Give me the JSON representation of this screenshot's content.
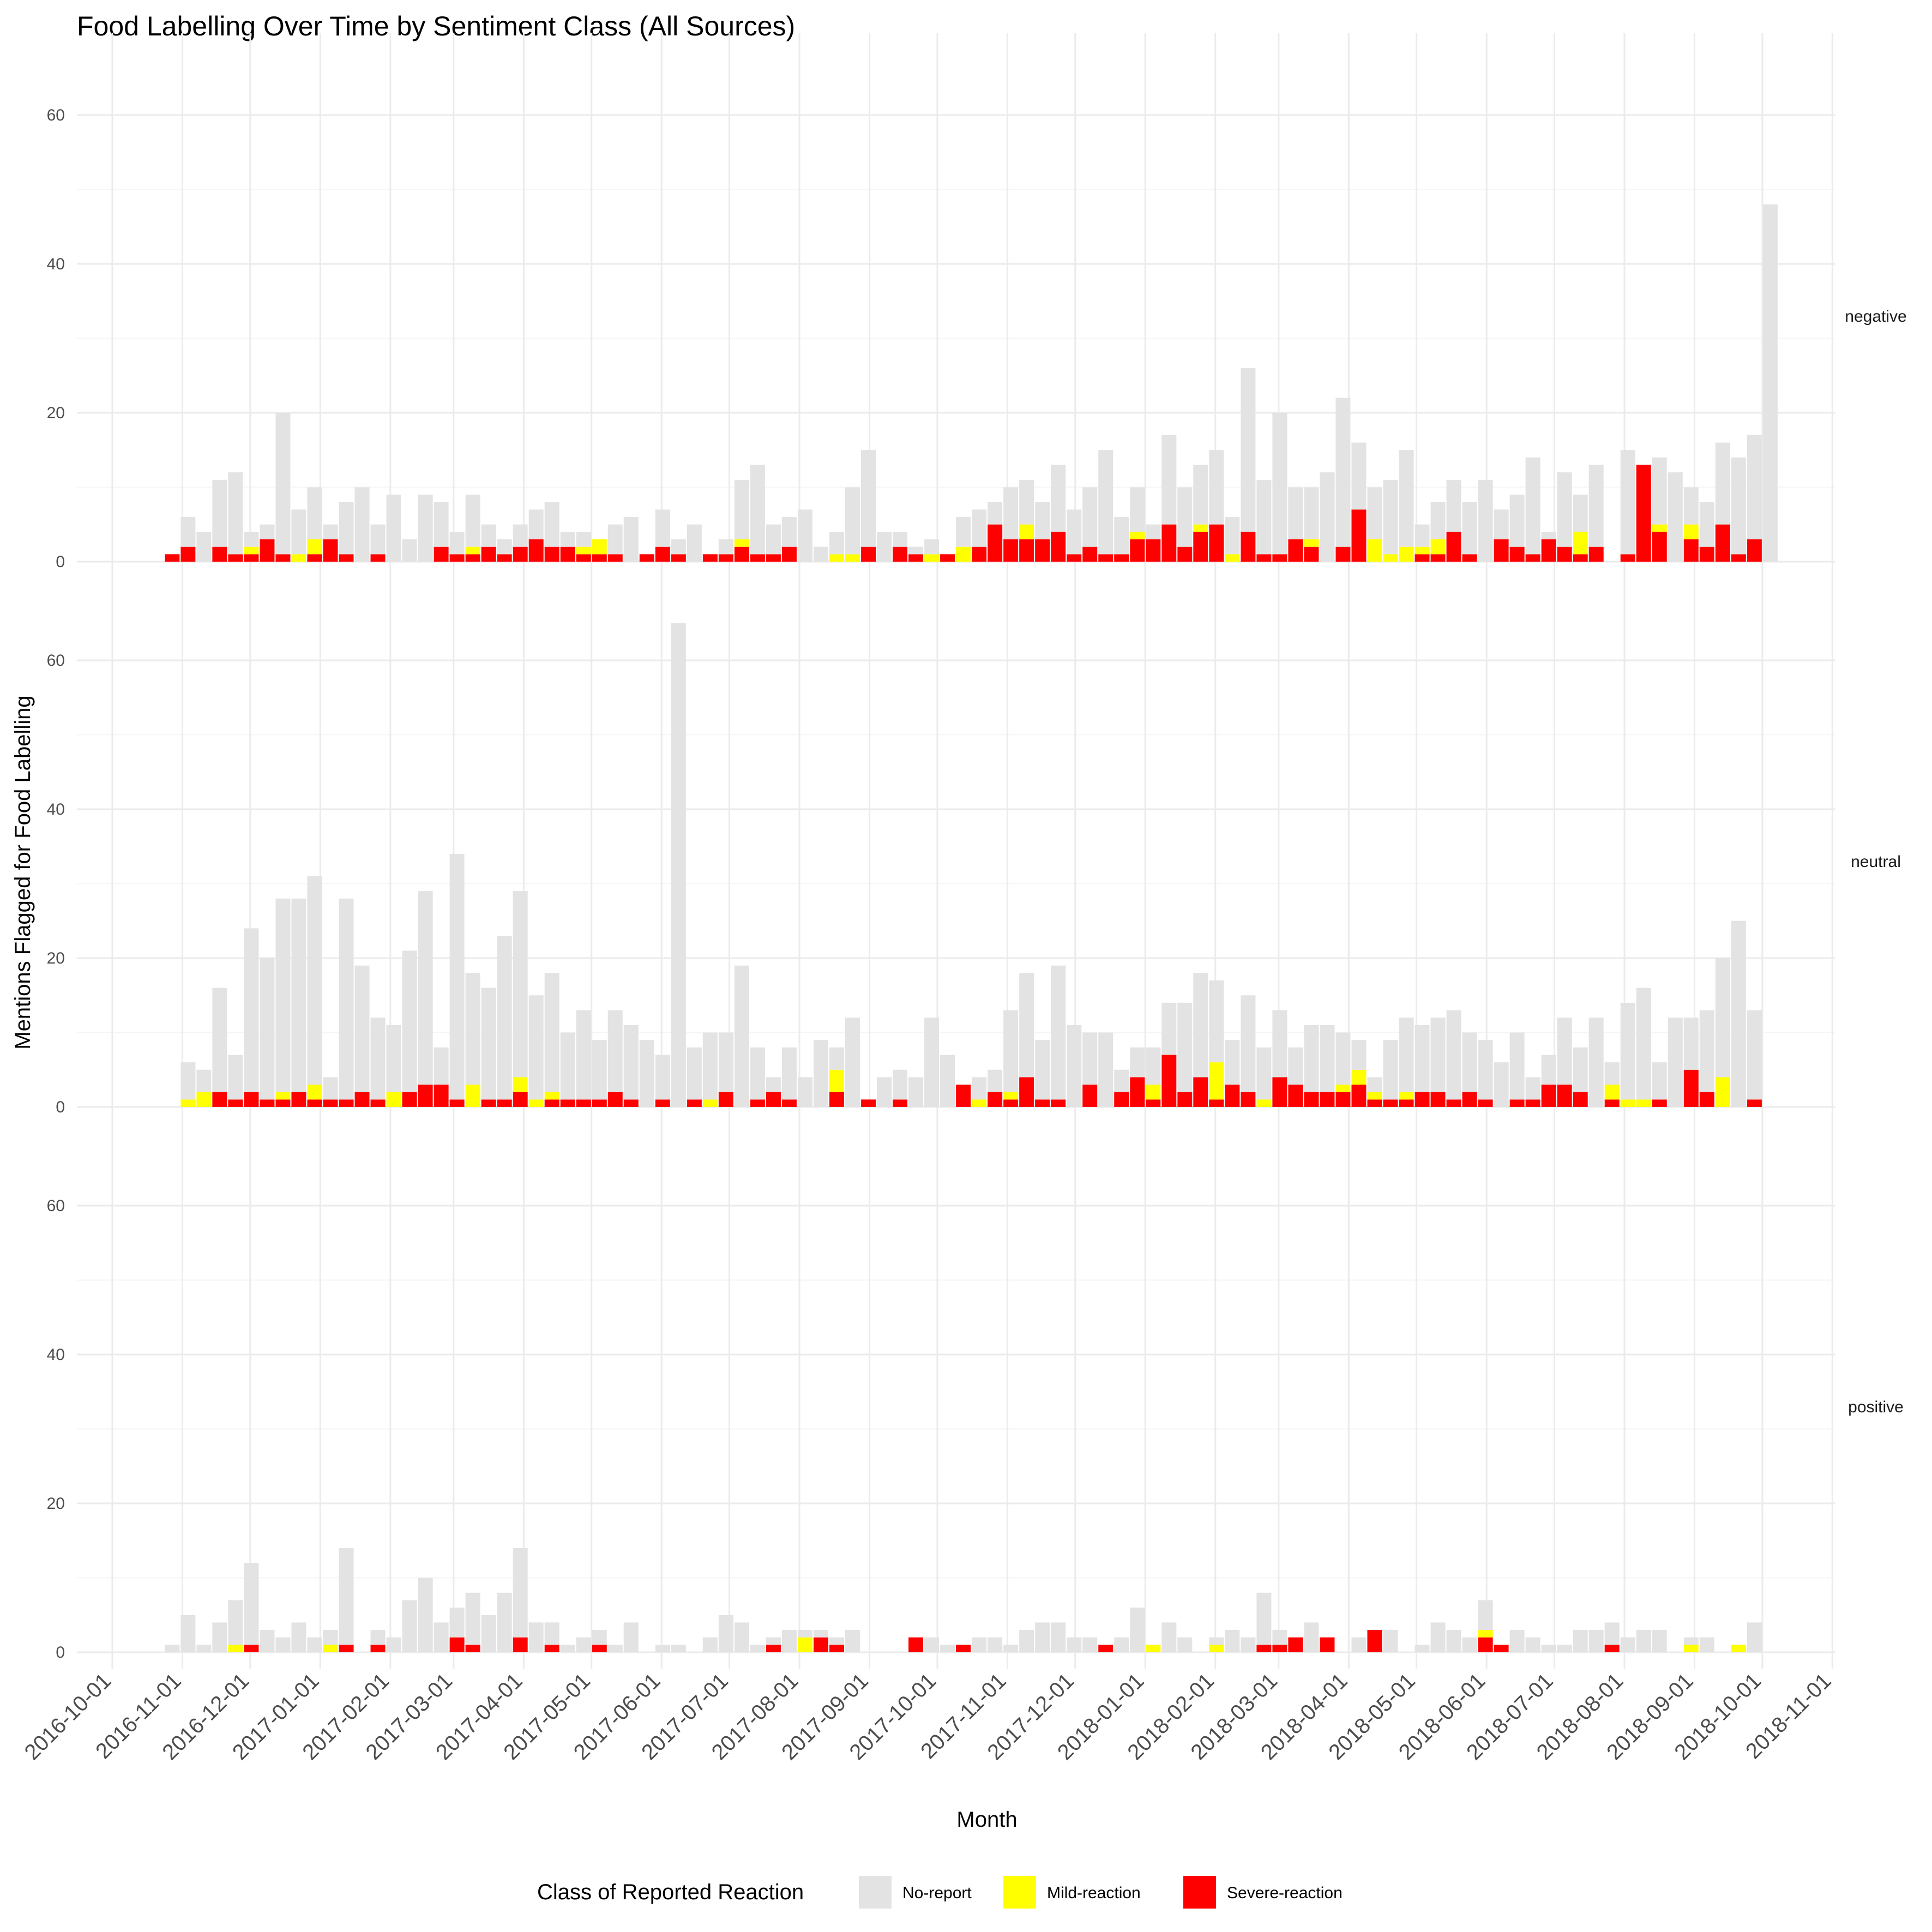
{
  "chart_data": {
    "type": "bar",
    "stacked": true,
    "title": "Food Labelling Over Time by Sentiment Class (All Sources)",
    "xlabel": "Month",
    "ylabel": "Mentions Flagged for Food Labelling",
    "x_ticks": [
      "2016-10-01",
      "2016-11-01",
      "2016-12-01",
      "2017-01-01",
      "2017-02-01",
      "2017-03-01",
      "2017-04-01",
      "2017-05-01",
      "2017-06-01",
      "2017-07-01",
      "2017-08-01",
      "2017-09-01",
      "2017-10-01",
      "2017-11-01",
      "2017-12-01",
      "2018-01-01",
      "2018-02-01",
      "2018-03-01",
      "2018-04-01",
      "2018-05-01",
      "2018-06-01",
      "2018-07-01",
      "2018-08-01",
      "2018-09-01",
      "2018-10-01",
      "2018-11-01"
    ],
    "y_ticks": [
      0,
      20,
      40,
      60
    ],
    "ylim": [
      0,
      68
    ],
    "x_unit": "week",
    "first_week_start": "2016-10-24",
    "legend": {
      "title": "Class of Reported Reaction",
      "position": "bottom",
      "entries": [
        {
          "label": "No-report",
          "color": "#e3e3e3"
        },
        {
          "label": "Mild-reaction",
          "color": "#ffff00"
        },
        {
          "label": "Severe-reaction",
          "color": "#ff0000"
        }
      ]
    },
    "grid": true,
    "panels": [
      {
        "strip": "negative",
        "totals": [
          1,
          6,
          4,
          11,
          12,
          4,
          5,
          20,
          7,
          10,
          5,
          8,
          10,
          5,
          9,
          3,
          9,
          8,
          4,
          9,
          5,
          3,
          5,
          7,
          8,
          4,
          4,
          3,
          5,
          6,
          1,
          7,
          3,
          5,
          1,
          3,
          11,
          13,
          5,
          6,
          7,
          2,
          4,
          10,
          15,
          4,
          4,
          2,
          3,
          1,
          6,
          7,
          8,
          10,
          11,
          8,
          13,
          7,
          10,
          15,
          6,
          10,
          5,
          17,
          10,
          13,
          15,
          6,
          26,
          11,
          20,
          10,
          10,
          12,
          22,
          16,
          10,
          11,
          15,
          5,
          8,
          11,
          8,
          11,
          7,
          9,
          14,
          4,
          12,
          9,
          13,
          0,
          15,
          5,
          14,
          12,
          10,
          8,
          16,
          14,
          17,
          48
        ],
        "mild": [
          0,
          0,
          0,
          0,
          0,
          1,
          0,
          0,
          1,
          2,
          0,
          0,
          0,
          0,
          0,
          0,
          0,
          0,
          0,
          1,
          0,
          0,
          0,
          0,
          0,
          0,
          1,
          2,
          0,
          0,
          0,
          0,
          0,
          0,
          0,
          0,
          1,
          0,
          0,
          0,
          0,
          0,
          1,
          1,
          0,
          0,
          0,
          0,
          1,
          0,
          2,
          0,
          0,
          0,
          2,
          0,
          0,
          0,
          0,
          0,
          0,
          1,
          0,
          0,
          0,
          1,
          0,
          1,
          0,
          0,
          0,
          0,
          1,
          0,
          0,
          0,
          3,
          1,
          2,
          1,
          2,
          0,
          0,
          0,
          0,
          0,
          0,
          0,
          0,
          3,
          0,
          0,
          0,
          0,
          1,
          0,
          2,
          0,
          0,
          0,
          0,
          0
        ],
        "severe": [
          1,
          2,
          0,
          2,
          1,
          1,
          3,
          1,
          0,
          1,
          3,
          1,
          0,
          1,
          0,
          0,
          0,
          2,
          1,
          1,
          2,
          1,
          2,
          3,
          2,
          2,
          1,
          1,
          1,
          0,
          1,
          2,
          1,
          0,
          1,
          1,
          2,
          1,
          1,
          2,
          0,
          0,
          0,
          0,
          2,
          0,
          2,
          1,
          0,
          1,
          0,
          2,
          5,
          3,
          3,
          3,
          4,
          1,
          2,
          1,
          1,
          3,
          3,
          5,
          2,
          4,
          5,
          0,
          4,
          1,
          1,
          3,
          2,
          0,
          2,
          7,
          0,
          0,
          0,
          1,
          1,
          4,
          1,
          0,
          3,
          2,
          1,
          3,
          2,
          1,
          2,
          0,
          1,
          13,
          4,
          0,
          3,
          2,
          5,
          1,
          3,
          0
        ]
      },
      {
        "strip": "neutral",
        "totals": [
          0,
          6,
          5,
          16,
          7,
          24,
          20,
          28,
          28,
          31,
          4,
          28,
          19,
          12,
          11,
          21,
          29,
          8,
          34,
          18,
          16,
          23,
          29,
          15,
          18,
          10,
          13,
          9,
          13,
          11,
          9,
          7,
          65,
          8,
          10,
          10,
          19,
          8,
          4,
          8,
          4,
          9,
          8,
          12,
          1,
          4,
          5,
          4,
          12,
          7,
          3,
          4,
          5,
          13,
          18,
          9,
          19,
          11,
          10,
          10,
          5,
          8,
          8,
          14,
          14,
          18,
          17,
          9,
          15,
          8,
          13,
          8,
          11,
          11,
          10,
          9,
          4,
          9,
          12,
          11,
          12,
          13,
          10,
          9,
          6,
          10,
          4,
          7,
          12,
          8,
          12,
          6,
          14,
          16,
          6,
          12,
          12,
          13,
          20,
          25,
          13,
          0
        ],
        "mild": [
          0,
          1,
          2,
          0,
          0,
          0,
          0,
          1,
          0,
          2,
          0,
          0,
          0,
          0,
          2,
          0,
          0,
          0,
          0,
          3,
          0,
          0,
          2,
          1,
          1,
          0,
          0,
          0,
          0,
          0,
          0,
          0,
          0,
          0,
          1,
          0,
          0,
          0,
          0,
          0,
          0,
          0,
          3,
          0,
          0,
          0,
          0,
          0,
          0,
          0,
          0,
          1,
          0,
          1,
          0,
          0,
          0,
          0,
          0,
          0,
          0,
          0,
          2,
          0,
          0,
          0,
          5,
          0,
          0,
          1,
          0,
          0,
          0,
          0,
          1,
          2,
          1,
          0,
          1,
          0,
          0,
          0,
          0,
          0,
          0,
          0,
          0,
          0,
          0,
          0,
          0,
          2,
          1,
          1,
          0,
          0,
          0,
          0,
          4,
          0,
          0,
          0
        ],
        "severe": [
          0,
          0,
          0,
          2,
          1,
          2,
          1,
          1,
          2,
          1,
          1,
          1,
          2,
          1,
          0,
          2,
          3,
          3,
          1,
          0,
          1,
          1,
          2,
          0,
          1,
          1,
          1,
          1,
          2,
          1,
          0,
          1,
          0,
          1,
          0,
          2,
          0,
          1,
          2,
          1,
          0,
          0,
          2,
          0,
          1,
          0,
          1,
          0,
          0,
          0,
          3,
          0,
          2,
          1,
          4,
          1,
          1,
          0,
          3,
          0,
          2,
          4,
          1,
          7,
          2,
          4,
          1,
          3,
          2,
          0,
          4,
          3,
          2,
          2,
          2,
          3,
          1,
          1,
          1,
          2,
          2,
          1,
          2,
          1,
          0,
          1,
          1,
          3,
          3,
          2,
          0,
          1,
          0,
          0,
          1,
          0,
          5,
          2,
          0,
          0,
          1,
          0
        ]
      },
      {
        "strip": "positive",
        "totals": [
          1,
          5,
          1,
          4,
          7,
          12,
          3,
          2,
          4,
          2,
          3,
          14,
          0,
          3,
          2,
          7,
          10,
          4,
          6,
          8,
          5,
          8,
          14,
          4,
          4,
          1,
          2,
          3,
          1,
          4,
          0,
          1,
          1,
          0,
          2,
          5,
          4,
          1,
          2,
          3,
          3,
          3,
          2,
          3,
          0,
          0,
          0,
          2,
          2,
          1,
          0,
          2,
          2,
          1,
          3,
          4,
          4,
          2,
          2,
          1,
          2,
          6,
          1,
          4,
          2,
          0,
          2,
          3,
          2,
          8,
          3,
          2,
          4,
          2,
          0,
          2,
          3,
          3,
          0,
          1,
          4,
          3,
          2,
          7,
          1,
          3,
          2,
          1,
          1,
          3,
          3,
          4,
          2,
          3,
          3,
          0,
          2,
          2,
          0,
          1,
          4,
          0
        ],
        "mild": [
          0,
          0,
          0,
          0,
          1,
          0,
          0,
          0,
          0,
          0,
          1,
          0,
          0,
          0,
          0,
          0,
          0,
          0,
          0,
          0,
          0,
          0,
          0,
          0,
          0,
          0,
          0,
          0,
          0,
          0,
          0,
          0,
          0,
          0,
          0,
          0,
          0,
          0,
          0,
          0,
          2,
          0,
          0,
          0,
          0,
          0,
          0,
          0,
          0,
          0,
          0,
          0,
          0,
          0,
          0,
          0,
          0,
          0,
          0,
          0,
          0,
          0,
          1,
          0,
          0,
          0,
          1,
          0,
          0,
          0,
          0,
          0,
          0,
          0,
          0,
          0,
          0,
          0,
          0,
          0,
          0,
          0,
          0,
          1,
          0,
          0,
          0,
          0,
          0,
          0,
          0,
          0,
          0,
          0,
          0,
          0,
          1,
          0,
          0,
          1,
          0,
          0
        ],
        "severe": [
          0,
          0,
          0,
          0,
          0,
          1,
          0,
          0,
          0,
          0,
          0,
          1,
          0,
          1,
          0,
          0,
          0,
          0,
          2,
          1,
          0,
          0,
          2,
          0,
          1,
          0,
          0,
          1,
          0,
          0,
          0,
          0,
          0,
          0,
          0,
          0,
          0,
          0,
          1,
          0,
          0,
          2,
          1,
          0,
          0,
          0,
          0,
          2,
          0,
          0,
          1,
          0,
          0,
          0,
          0,
          0,
          0,
          0,
          0,
          1,
          0,
          0,
          0,
          0,
          0,
          0,
          0,
          0,
          0,
          1,
          1,
          2,
          0,
          2,
          0,
          0,
          3,
          0,
          0,
          0,
          0,
          0,
          0,
          2,
          1,
          0,
          0,
          0,
          0,
          0,
          0,
          1,
          0,
          0,
          0,
          0,
          0,
          0,
          0,
          0,
          0,
          0
        ]
      }
    ]
  }
}
